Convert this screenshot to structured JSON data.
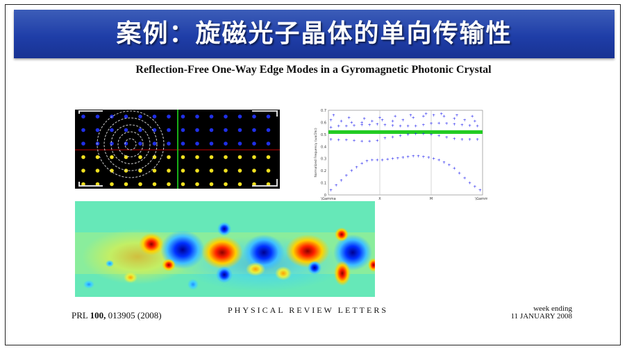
{
  "slide": {
    "title": "案例：旋磁光子晶体的单向传输性",
    "paper_title": "Reflection-Free One-Way Edge Modes in a Gyromagnetic Photonic Crystal"
  },
  "footer": {
    "journal_prefix": "PRL ",
    "volume": "100,",
    "article": " 013905 (2008)",
    "journal_name": "PHYSICAL REVIEW LETTERS",
    "week_ending": "week ending",
    "date": "11 JANUARY 2008"
  },
  "chart_data": {
    "type": "scatter",
    "ylabel": "Normalized Frequency (ωa/2πc)",
    "categories": [
      "\\Gamma",
      "X",
      "M",
      "\\Gamma"
    ],
    "yticks": [
      "0",
      "0.1",
      "0.2",
      "0.3",
      "0.4",
      "0.5",
      "0.6",
      "0.7"
    ],
    "ylim": [
      0,
      0.7
    ],
    "gap_band": [
      0.505,
      0.535
    ],
    "gap_color": "#22cc22",
    "point_color": "#1010ee",
    "series": [
      {
        "values_x": [
          0.05,
          0.15,
          0.25,
          0.35,
          0.45,
          0.55,
          0.65,
          0.75,
          0.85,
          0.95,
          1.05,
          1.15,
          1.25,
          1.35,
          1.45,
          1.55,
          1.65,
          1.75,
          1.85,
          1.95,
          2.05,
          2.15,
          2.25,
          2.35,
          2.45,
          2.55,
          2.65,
          2.75,
          2.85,
          2.95
        ],
        "values_y": [
          0.04,
          0.08,
          0.12,
          0.16,
          0.2,
          0.23,
          0.26,
          0.28,
          0.29,
          0.29,
          0.29,
          0.295,
          0.3,
          0.305,
          0.31,
          0.315,
          0.32,
          0.32,
          0.315,
          0.31,
          0.3,
          0.29,
          0.27,
          0.25,
          0.22,
          0.18,
          0.14,
          0.1,
          0.07,
          0.04
        ]
      },
      {
        "values_x": [
          0.05,
          0.2,
          0.35,
          0.5,
          0.65,
          0.8,
          0.95,
          1.1,
          1.25,
          1.4,
          1.55,
          1.7,
          1.85,
          2.0,
          2.15,
          2.3,
          2.45,
          2.6,
          2.75,
          2.9
        ],
        "values_y": [
          0.46,
          0.455,
          0.455,
          0.45,
          0.445,
          0.445,
          0.45,
          0.47,
          0.48,
          0.49,
          0.5,
          0.505,
          0.505,
          0.5,
          0.49,
          0.475,
          0.465,
          0.46,
          0.46,
          0.46
        ]
      },
      {
        "values_x": [
          0.05,
          0.2,
          0.35,
          0.5,
          0.65,
          0.8,
          0.95,
          1.1,
          1.25,
          1.4,
          1.55,
          1.7,
          1.85,
          2.0,
          2.15,
          2.3,
          2.45,
          2.6,
          2.75,
          2.9
        ],
        "values_y": [
          0.56,
          0.57,
          0.57,
          0.575,
          0.58,
          0.58,
          0.585,
          0.58,
          0.575,
          0.57,
          0.57,
          0.57,
          0.58,
          0.59,
          0.595,
          0.59,
          0.585,
          0.58,
          0.575,
          0.57
        ]
      },
      {
        "values_x": [
          0.05,
          0.25,
          0.45,
          0.65,
          0.85,
          1.05,
          1.25,
          1.45,
          1.65,
          1.85,
          2.05,
          2.25,
          2.45,
          2.65,
          2.85
        ],
        "values_y": [
          0.62,
          0.61,
          0.6,
          0.6,
          0.61,
          0.62,
          0.61,
          0.62,
          0.64,
          0.65,
          0.66,
          0.65,
          0.63,
          0.62,
          0.61
        ]
      },
      {
        "values_x": [
          0.1,
          0.4,
          0.7,
          1.0,
          1.3,
          1.6,
          1.9,
          2.2,
          2.5,
          2.8
        ],
        "values_y": [
          0.66,
          0.64,
          0.63,
          0.64,
          0.65,
          0.66,
          0.67,
          0.67,
          0.66,
          0.65
        ]
      }
    ]
  }
}
